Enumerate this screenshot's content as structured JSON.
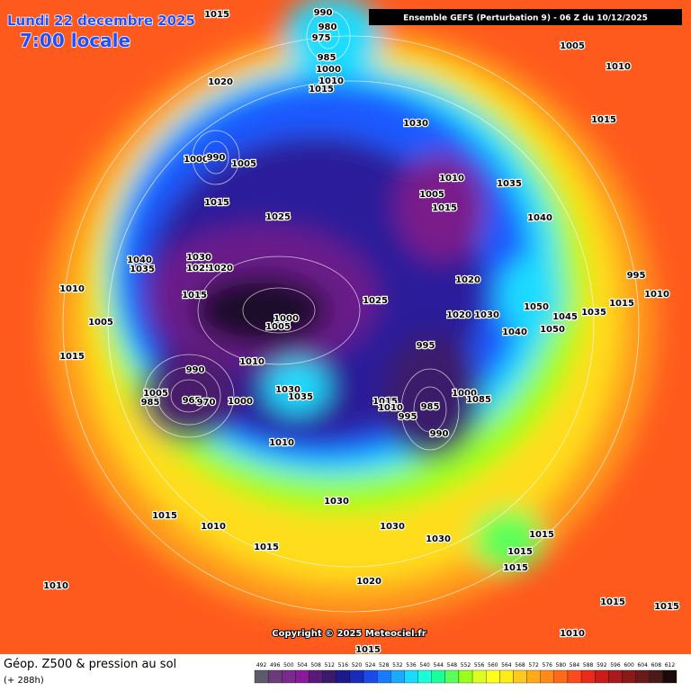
{
  "header": {
    "date": "Lundi 22 decembre 2025",
    "time": "7:00 locale",
    "run": "Ensemble GEFS  (Perturbation 9)  -  06 Z du 10/12/2025"
  },
  "footer": {
    "title": "Géop. Z500 & pression au sol",
    "lead": "(+ 288h)",
    "copyright": "Copyright © 2025 Meteociel.fr"
  },
  "map": {
    "pressure_labels": [
      "1015",
      "990",
      "980",
      "975",
      "985",
      "1000",
      "1010",
      "1015",
      "1005",
      "1010",
      "1020",
      "1030",
      "1015",
      "1000",
      "990",
      "1005",
      "1010",
      "1035",
      "1005",
      "1015",
      "1015",
      "1025",
      "1040",
      "1040",
      "1030",
      "1035",
      "1025",
      "1020",
      "995",
      "1010",
      "1015",
      "1020",
      "1025",
      "1050",
      "1015",
      "1010",
      "1035",
      "1045",
      "1005",
      "1000",
      "1005",
      "1020",
      "1030",
      "1050",
      "1040",
      "995",
      "1015",
      "1010",
      "990",
      "1005",
      "1030",
      "1035",
      "1000",
      "965",
      "970",
      "985",
      "1015",
      "1010",
      "1000",
      "1085",
      "985",
      "995",
      "990",
      "1010",
      "1030",
      "1015",
      "1010",
      "1030",
      "1030",
      "1015",
      "1015",
      "1015",
      "1015",
      "1010",
      "1020",
      "1015",
      "1015",
      "1010",
      "1015"
    ]
  },
  "colorbar": {
    "ticks": [
      492,
      496,
      500,
      504,
      508,
      512,
      516,
      520,
      524,
      528,
      532,
      536,
      540,
      544,
      548,
      552,
      556,
      560,
      564,
      568,
      572,
      576,
      580,
      584,
      588,
      592,
      596,
      600,
      604,
      608,
      612
    ],
    "colors": [
      "#5b5b6b",
      "#6b3b7b",
      "#7a2a8a",
      "#8a1a9a",
      "#5a1a7a",
      "#3a1a6a",
      "#1a1a8a",
      "#1a2aba",
      "#1a4aea",
      "#1a7aff",
      "#1aaaff",
      "#1adaff",
      "#1affda",
      "#1aff9a",
      "#5aff5a",
      "#9aff1a",
      "#daff1a",
      "#ffff1a",
      "#ffea1a",
      "#ffca1a",
      "#ffaa1a",
      "#ff8a1a",
      "#ff6a1a",
      "#ff4a1a",
      "#ea2a1a",
      "#ca1a1a",
      "#aa1a1a",
      "#8a1a1a",
      "#6a1a1a",
      "#4a1a1a",
      "#1a0a0a"
    ]
  }
}
